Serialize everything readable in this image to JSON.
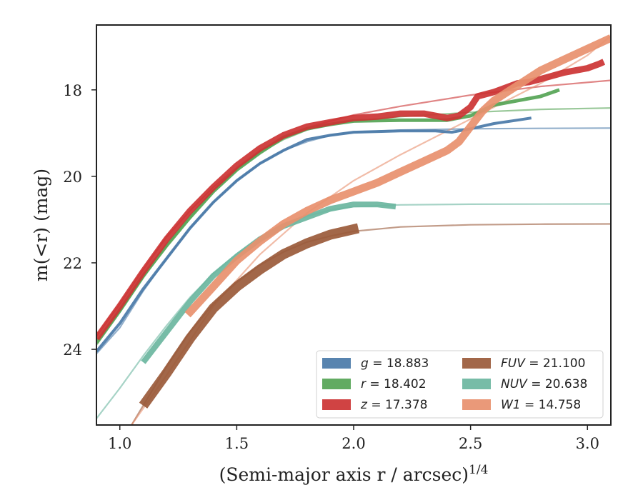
{
  "chart_data": {
    "type": "line",
    "xlabel": "(Semi-major axis r / arcsec)",
    "xlabel_exponent": "1/4",
    "ylabel": "m(<r) (mag)",
    "xlim": [
      0.9,
      3.1
    ],
    "ylim": [
      25.75,
      16.5
    ],
    "y_inverted": true,
    "xticks": [
      1.0,
      1.5,
      2.0,
      2.5,
      3.0
    ],
    "xtick_labels": [
      "1.0",
      "1.5",
      "2.0",
      "2.5",
      "3.0"
    ],
    "yticks": [
      18,
      20,
      22,
      24
    ],
    "ytick_labels": [
      "18",
      "20",
      "22",
      "24"
    ],
    "grid": false,
    "legend_position": "lower-right",
    "legend_columns": 2,
    "series": [
      {
        "name": "g = 18.883",
        "band": "g",
        "value": "18.883",
        "color": "#4a7aa8",
        "profile": [
          [
            0.9,
            24.05
          ],
          [
            1.0,
            23.4
          ],
          [
            1.1,
            22.6
          ],
          [
            1.2,
            21.9
          ],
          [
            1.3,
            21.2
          ],
          [
            1.4,
            20.6
          ],
          [
            1.5,
            20.1
          ],
          [
            1.6,
            19.7
          ],
          [
            1.7,
            19.4
          ],
          [
            1.8,
            19.15
          ],
          [
            1.9,
            19.05
          ],
          [
            2.0,
            18.98
          ],
          [
            2.2,
            18.95
          ],
          [
            2.35,
            18.95
          ],
          [
            2.42,
            18.98
          ],
          [
            2.5,
            18.9
          ],
          [
            2.6,
            18.78
          ],
          [
            2.7,
            18.7
          ],
          [
            2.76,
            18.65
          ]
        ],
        "width": 4,
        "model": [
          [
            0.9,
            24.1
          ],
          [
            1.0,
            23.5
          ],
          [
            1.1,
            22.65
          ],
          [
            1.2,
            21.9
          ],
          [
            1.3,
            21.2
          ],
          [
            1.4,
            20.6
          ],
          [
            1.5,
            20.1
          ],
          [
            1.6,
            19.7
          ],
          [
            1.7,
            19.4
          ],
          [
            1.8,
            19.2
          ],
          [
            1.9,
            19.05
          ],
          [
            2.0,
            18.98
          ],
          [
            2.2,
            18.93
          ],
          [
            2.5,
            18.9
          ],
          [
            2.8,
            18.89
          ],
          [
            3.1,
            18.883
          ]
        ]
      },
      {
        "name": "r = 18.402",
        "band": "r",
        "value": "18.402",
        "color": "#55a455",
        "profile": [
          [
            0.9,
            23.85
          ],
          [
            1.0,
            23.1
          ],
          [
            1.1,
            22.3
          ],
          [
            1.2,
            21.6
          ],
          [
            1.3,
            20.95
          ],
          [
            1.4,
            20.35
          ],
          [
            1.5,
            19.85
          ],
          [
            1.6,
            19.45
          ],
          [
            1.7,
            19.1
          ],
          [
            1.8,
            18.9
          ],
          [
            1.9,
            18.8
          ],
          [
            2.0,
            18.72
          ],
          [
            2.2,
            18.7
          ],
          [
            2.4,
            18.7
          ],
          [
            2.5,
            18.6
          ],
          [
            2.6,
            18.35
          ],
          [
            2.7,
            18.25
          ],
          [
            2.8,
            18.15
          ],
          [
            2.88,
            18.0
          ]
        ],
        "width": 5,
        "model": [
          [
            0.9,
            23.9
          ],
          [
            1.0,
            23.15
          ],
          [
            1.1,
            22.35
          ],
          [
            1.2,
            21.6
          ],
          [
            1.3,
            20.95
          ],
          [
            1.4,
            20.35
          ],
          [
            1.5,
            19.85
          ],
          [
            1.6,
            19.45
          ],
          [
            1.7,
            19.15
          ],
          [
            1.8,
            18.93
          ],
          [
            1.9,
            18.8
          ],
          [
            2.0,
            18.72
          ],
          [
            2.2,
            18.62
          ],
          [
            2.5,
            18.52
          ],
          [
            2.8,
            18.45
          ],
          [
            3.1,
            18.42
          ]
        ]
      },
      {
        "name": "z = 17.378",
        "band": "z",
        "value": "17.378",
        "color": "#cc3333",
        "profile": [
          [
            0.9,
            23.75
          ],
          [
            1.0,
            23.0
          ],
          [
            1.1,
            22.2
          ],
          [
            1.2,
            21.45
          ],
          [
            1.3,
            20.8
          ],
          [
            1.4,
            20.25
          ],
          [
            1.5,
            19.75
          ],
          [
            1.6,
            19.35
          ],
          [
            1.7,
            19.05
          ],
          [
            1.8,
            18.85
          ],
          [
            1.9,
            18.75
          ],
          [
            2.0,
            18.65
          ],
          [
            2.1,
            18.62
          ],
          [
            2.2,
            18.55
          ],
          [
            2.3,
            18.55
          ],
          [
            2.4,
            18.65
          ],
          [
            2.45,
            18.6
          ],
          [
            2.5,
            18.4
          ],
          [
            2.53,
            18.15
          ],
          [
            2.6,
            18.05
          ],
          [
            2.65,
            17.95
          ],
          [
            2.7,
            17.85
          ],
          [
            2.75,
            17.82
          ],
          [
            2.8,
            17.75
          ],
          [
            2.9,
            17.6
          ],
          [
            3.0,
            17.5
          ],
          [
            3.05,
            17.4
          ],
          [
            3.07,
            17.35
          ]
        ],
        "width": 9,
        "model": [
          [
            0.9,
            23.7
          ],
          [
            1.0,
            22.95
          ],
          [
            1.1,
            22.15
          ],
          [
            1.2,
            21.4
          ],
          [
            1.3,
            20.8
          ],
          [
            1.4,
            20.25
          ],
          [
            1.5,
            19.8
          ],
          [
            1.6,
            19.4
          ],
          [
            1.7,
            19.1
          ],
          [
            1.8,
            18.88
          ],
          [
            1.9,
            18.72
          ],
          [
            2.0,
            18.58
          ],
          [
            2.2,
            18.38
          ],
          [
            2.5,
            18.12
          ],
          [
            2.8,
            17.92
          ],
          [
            3.1,
            17.78
          ]
        ]
      },
      {
        "name": "FUV = 21.100",
        "band": "FUV",
        "value": "21.100",
        "color": "#9a5a3a",
        "profile": [
          [
            1.1,
            25.3
          ],
          [
            1.2,
            24.55
          ],
          [
            1.3,
            23.75
          ],
          [
            1.4,
            23.05
          ],
          [
            1.5,
            22.55
          ],
          [
            1.6,
            22.15
          ],
          [
            1.7,
            21.8
          ],
          [
            1.8,
            21.55
          ],
          [
            1.9,
            21.35
          ],
          [
            2.02,
            21.2
          ]
        ],
        "width": 14,
        "model": [
          [
            1.05,
            25.75
          ],
          [
            1.2,
            24.4
          ],
          [
            1.3,
            23.6
          ],
          [
            1.4,
            22.95
          ],
          [
            1.5,
            22.45
          ],
          [
            1.6,
            22.05
          ],
          [
            1.7,
            21.75
          ],
          [
            1.8,
            21.52
          ],
          [
            1.9,
            21.38
          ],
          [
            2.0,
            21.27
          ],
          [
            2.2,
            21.17
          ],
          [
            2.5,
            21.12
          ],
          [
            2.8,
            21.105
          ],
          [
            3.1,
            21.1
          ]
        ]
      },
      {
        "name": "NUV = 20.638",
        "band": "NUV",
        "value": "20.638",
        "color": "#6bb6a0",
        "profile": [
          [
            1.1,
            24.3
          ],
          [
            1.2,
            23.6
          ],
          [
            1.3,
            22.9
          ],
          [
            1.4,
            22.3
          ],
          [
            1.5,
            21.85
          ],
          [
            1.6,
            21.45
          ],
          [
            1.7,
            21.15
          ],
          [
            1.8,
            20.95
          ],
          [
            1.9,
            20.75
          ],
          [
            2.0,
            20.65
          ],
          [
            2.1,
            20.65
          ],
          [
            2.18,
            20.7
          ]
        ],
        "width": 8,
        "model": [
          [
            0.9,
            25.6
          ],
          [
            1.0,
            24.9
          ],
          [
            1.1,
            24.15
          ],
          [
            1.2,
            23.45
          ],
          [
            1.3,
            22.8
          ],
          [
            1.4,
            22.25
          ],
          [
            1.5,
            21.8
          ],
          [
            1.6,
            21.42
          ],
          [
            1.7,
            21.12
          ],
          [
            1.8,
            20.92
          ],
          [
            1.9,
            20.78
          ],
          [
            2.0,
            20.7
          ],
          [
            2.2,
            20.66
          ],
          [
            2.5,
            20.645
          ],
          [
            3.1,
            20.638
          ]
        ]
      },
      {
        "name": "W1 = 14.758",
        "band": "W1",
        "value": "14.758",
        "color": "#e8906e",
        "profile": [
          [
            1.29,
            23.2
          ],
          [
            1.4,
            22.55
          ],
          [
            1.5,
            21.95
          ],
          [
            1.6,
            21.5
          ],
          [
            1.7,
            21.1
          ],
          [
            1.8,
            20.8
          ],
          [
            1.9,
            20.55
          ],
          [
            2.0,
            20.35
          ],
          [
            2.1,
            20.15
          ],
          [
            2.2,
            19.9
          ],
          [
            2.3,
            19.65
          ],
          [
            2.4,
            19.4
          ],
          [
            2.45,
            19.2
          ],
          [
            2.5,
            18.85
          ],
          [
            2.55,
            18.5
          ],
          [
            2.6,
            18.25
          ],
          [
            2.7,
            17.9
          ],
          [
            2.8,
            17.55
          ],
          [
            2.9,
            17.3
          ],
          [
            3.0,
            17.05
          ],
          [
            3.1,
            16.8
          ]
        ],
        "width": 11,
        "model": [
          [
            1.05,
            25.75
          ],
          [
            1.2,
            24.6
          ],
          [
            1.4,
            23.0
          ],
          [
            1.6,
            21.8
          ],
          [
            1.8,
            20.85
          ],
          [
            2.0,
            20.1
          ],
          [
            2.2,
            19.5
          ],
          [
            2.4,
            18.95
          ],
          [
            2.6,
            18.4
          ],
          [
            2.8,
            17.85
          ],
          [
            3.0,
            17.2
          ],
          [
            3.1,
            16.75
          ]
        ]
      }
    ]
  }
}
